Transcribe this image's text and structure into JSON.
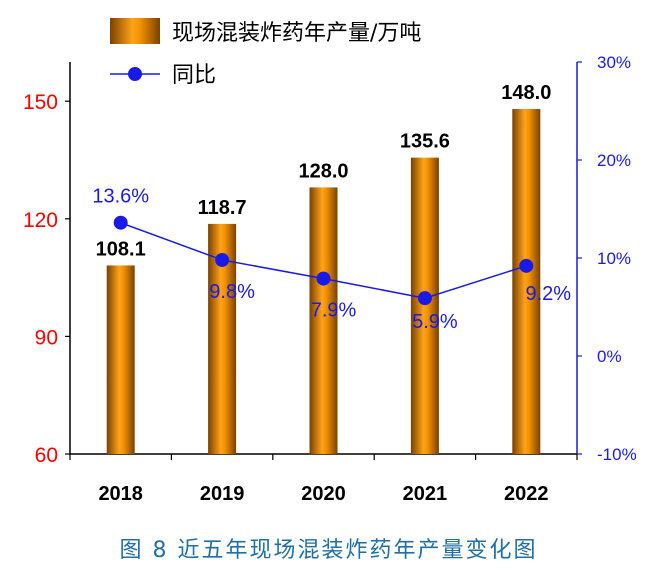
{
  "caption": "图 8  近五年现场混装炸药年产量变化图",
  "chart_data": {
    "type": "bar",
    "categories": [
      "2018",
      "2019",
      "2020",
      "2021",
      "2022"
    ],
    "series": [
      {
        "name": "现场混装炸药年产量/万吨",
        "type": "bar",
        "axis": "left",
        "values": [
          108.1,
          118.7,
          128.0,
          135.6,
          148.0
        ],
        "labels": [
          "108.1",
          "118.7",
          "128.0",
          "135.6",
          "148.0"
        ],
        "color": "#e58a00"
      },
      {
        "name": "同比",
        "type": "line",
        "axis": "right",
        "values": [
          13.6,
          9.8,
          7.9,
          5.9,
          9.2
        ],
        "labels": [
          "13.6%",
          "9.8%",
          "7.9%",
          "5.9%",
          "9.2%"
        ],
        "color": "#1a1ae6"
      }
    ],
    "y_left": {
      "ylim": [
        60,
        160
      ],
      "ticks": [
        60,
        90,
        120,
        150
      ],
      "color": "#ff0000"
    },
    "y_right": {
      "ylim": [
        -10,
        30
      ],
      "ticks": [
        -10,
        0,
        10,
        20,
        30
      ],
      "tick_labels": [
        "-10%",
        "0%",
        "10%",
        "20%",
        "30%"
      ],
      "color": "#1a1ae6"
    },
    "grid": false,
    "legend_position": "top-left"
  }
}
